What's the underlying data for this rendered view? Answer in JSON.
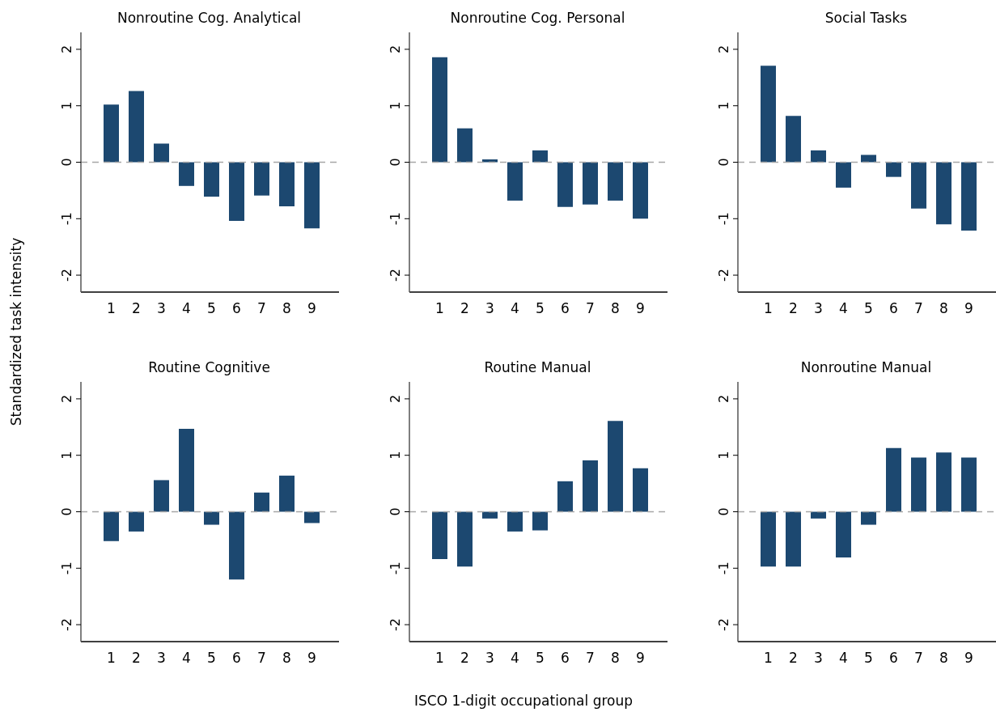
{
  "chart_data": [
    {
      "type": "bar",
      "title": "Nonroutine Cog. Analytical",
      "ylabel": "Standardized task intensity",
      "categories": [
        "1",
        "2",
        "3",
        "4",
        "5",
        "6",
        "7",
        "8",
        "9"
      ],
      "values": [
        1.02,
        1.26,
        0.33,
        -0.42,
        -0.61,
        -1.04,
        -0.59,
        -0.78,
        -1.17
      ],
      "color": "#1c4870",
      "ylim": [
        -2.3,
        2.3
      ],
      "yticks": [
        -2,
        -1,
        0,
        1,
        2
      ],
      "grid": false,
      "ref_lines": [
        {
          "axis": "y",
          "value": 0,
          "color": "#a6a6a6",
          "line_style": "dashed"
        }
      ]
    },
    {
      "type": "bar",
      "title": "Nonroutine Cog. Personal",
      "categories": [
        "1",
        "2",
        "3",
        "4",
        "5",
        "6",
        "7",
        "8",
        "9"
      ],
      "values": [
        1.86,
        0.6,
        0.05,
        -0.68,
        0.21,
        -0.79,
        -0.75,
        -0.68,
        -1.0
      ],
      "color": "#1c4870",
      "ylim": [
        -2.3,
        2.3
      ],
      "yticks": [
        -2,
        -1,
        0,
        1,
        2
      ],
      "grid": false,
      "ref_lines": [
        {
          "axis": "y",
          "value": 0,
          "color": "#a6a6a6",
          "line_style": "dashed"
        }
      ]
    },
    {
      "type": "bar",
      "title": "Social Tasks",
      "categories": [
        "1",
        "2",
        "3",
        "4",
        "5",
        "6",
        "7",
        "8",
        "9"
      ],
      "values": [
        1.71,
        0.82,
        0.21,
        -0.45,
        0.13,
        -0.26,
        -0.82,
        -1.1,
        -1.21
      ],
      "color": "#1c4870",
      "ylim": [
        -2.3,
        2.3
      ],
      "yticks": [
        -2,
        -1,
        0,
        1,
        2
      ],
      "grid": false,
      "ref_lines": [
        {
          "axis": "y",
          "value": 0,
          "color": "#a6a6a6",
          "line_style": "dashed"
        }
      ]
    },
    {
      "type": "bar",
      "title": "Routine Cognitive",
      "categories": [
        "1",
        "2",
        "3",
        "4",
        "5",
        "6",
        "7",
        "8",
        "9"
      ],
      "values": [
        -0.52,
        -0.35,
        0.56,
        1.47,
        -0.23,
        -1.2,
        0.34,
        0.64,
        -0.2
      ],
      "color": "#1c4870",
      "ylim": [
        -2.3,
        2.3
      ],
      "yticks": [
        -2,
        -1,
        0,
        1,
        2
      ],
      "grid": false,
      "ref_lines": [
        {
          "axis": "y",
          "value": 0,
          "color": "#a6a6a6",
          "line_style": "dashed"
        }
      ]
    },
    {
      "type": "bar",
      "title": "Routine Manual",
      "xlabel": "ISCO 1-digit occupational group",
      "categories": [
        "1",
        "2",
        "3",
        "4",
        "5",
        "6",
        "7",
        "8",
        "9"
      ],
      "values": [
        -0.84,
        -0.97,
        -0.12,
        -0.35,
        -0.33,
        0.54,
        0.91,
        1.61,
        0.77
      ],
      "color": "#1c4870",
      "ylim": [
        -2.3,
        2.3
      ],
      "yticks": [
        -2,
        -1,
        0,
        1,
        2
      ],
      "grid": false,
      "ref_lines": [
        {
          "axis": "y",
          "value": 0,
          "color": "#a6a6a6",
          "line_style": "dashed"
        }
      ]
    },
    {
      "type": "bar",
      "title": "Nonroutine Manual",
      "categories": [
        "1",
        "2",
        "3",
        "4",
        "5",
        "6",
        "7",
        "8",
        "9"
      ],
      "values": [
        -0.97,
        -0.97,
        -0.12,
        -0.81,
        -0.23,
        1.13,
        0.96,
        1.05,
        0.96
      ],
      "color": "#1c4870",
      "ylim": [
        -2.3,
        2.3
      ],
      "yticks": [
        -2,
        -1,
        0,
        1,
        2
      ],
      "grid": false,
      "ref_lines": [
        {
          "axis": "y",
          "value": 0,
          "color": "#a6a6a6",
          "line_style": "dashed"
        }
      ]
    }
  ]
}
